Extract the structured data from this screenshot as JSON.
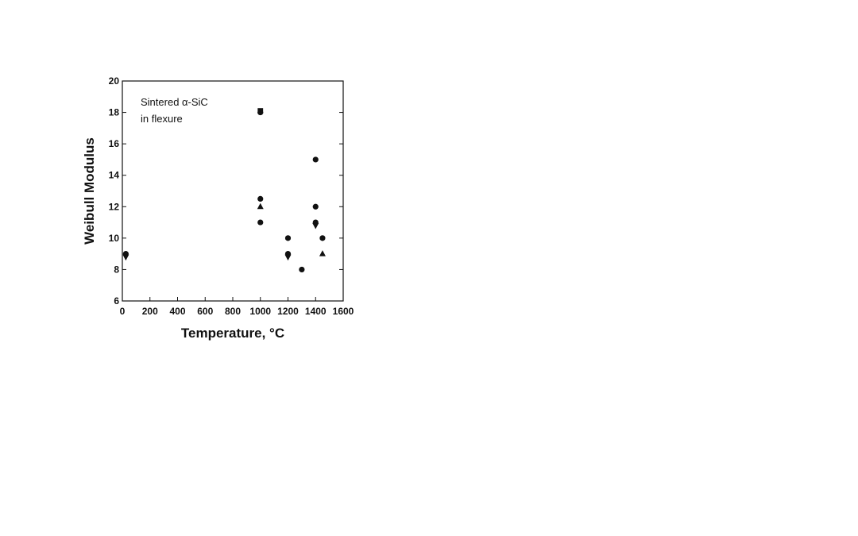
{
  "chart_data": {
    "type": "scatter",
    "title": "",
    "annotation": [
      "Sintered α-SiC",
      "in flexure"
    ],
    "xlabel": "Temperature, °C",
    "ylabel": "Weibull Modulus",
    "xlim": [
      0,
      1600
    ],
    "ylim": [
      6,
      20
    ],
    "xticks": [
      0,
      200,
      400,
      600,
      800,
      1000,
      1200,
      1400,
      1600
    ],
    "yticks": [
      6,
      8,
      10,
      12,
      14,
      16,
      18,
      20
    ],
    "grid": false,
    "legend": "none",
    "marker_color": "#111111",
    "points": [
      {
        "x": 25,
        "y": 9,
        "marker": "circle"
      },
      {
        "x": 25,
        "y": 8.8,
        "marker": "triangle-down"
      },
      {
        "x": 1000,
        "y": 18.1,
        "marker": "square"
      },
      {
        "x": 1000,
        "y": 18,
        "marker": "circle"
      },
      {
        "x": 1000,
        "y": 12.5,
        "marker": "circle"
      },
      {
        "x": 1000,
        "y": 12,
        "marker": "triangle"
      },
      {
        "x": 1000,
        "y": 11,
        "marker": "circle"
      },
      {
        "x": 1200,
        "y": 10,
        "marker": "circle"
      },
      {
        "x": 1200,
        "y": 9,
        "marker": "circle"
      },
      {
        "x": 1200,
        "y": 8.8,
        "marker": "triangle-down"
      },
      {
        "x": 1300,
        "y": 8,
        "marker": "circle"
      },
      {
        "x": 1400,
        "y": 15,
        "marker": "circle"
      },
      {
        "x": 1400,
        "y": 12,
        "marker": "circle"
      },
      {
        "x": 1400,
        "y": 11,
        "marker": "circle"
      },
      {
        "x": 1400,
        "y": 10.8,
        "marker": "triangle-down"
      },
      {
        "x": 1450,
        "y": 10,
        "marker": "circle"
      },
      {
        "x": 1450,
        "y": 9,
        "marker": "triangle"
      }
    ]
  }
}
